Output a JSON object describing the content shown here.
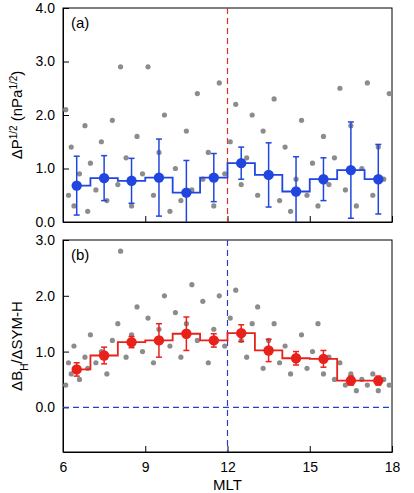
{
  "chart_data": [
    {
      "type": "scatter",
      "title": "(a)",
      "ylabel": [
        {
          "text": "ΔP"
        },
        {
          "text": "1/2",
          "sup": true
        },
        {
          "text": " (nPa"
        },
        {
          "text": "1/2",
          "sup": true
        },
        {
          "text": ")"
        }
      ],
      "xlim": [
        6,
        18
      ],
      "xticks": [
        6,
        9,
        12,
        15,
        18
      ],
      "ylim": [
        0,
        4
      ],
      "yticks": [
        {
          "value": 0,
          "label": "0.0"
        },
        {
          "value": 1,
          "label": "1.0"
        },
        {
          "value": 2,
          "label": "2.0"
        },
        {
          "value": 3,
          "label": "3.0"
        },
        {
          "value": 4,
          "label": "4.0"
        }
      ],
      "tick_labels": "y",
      "vline": 12,
      "vline_color": "#e0302a",
      "series": [
        {
          "type": "scatter",
          "color": "#8c8c8c",
          "marker": "circle",
          "x": [
            6.1,
            6.2,
            6.3,
            6.4,
            6.6,
            6.8,
            6.9,
            7.0,
            7.2,
            7.4,
            7.6,
            7.8,
            8.0,
            8.1,
            8.3,
            8.5,
            8.7,
            8.9,
            9.1,
            9.3,
            9.5,
            9.7,
            9.9,
            10.1,
            10.3,
            10.5,
            10.7,
            10.9,
            11.1,
            11.3,
            11.5,
            11.7,
            11.9,
            12.1,
            12.3,
            12.5,
            12.7,
            12.9,
            13.1,
            13.3,
            13.5,
            13.7,
            13.9,
            14.1,
            14.3,
            14.5,
            14.7,
            14.9,
            15.1,
            15.3,
            15.5,
            15.7,
            15.9,
            16.1,
            16.3,
            16.5,
            16.7,
            16.9,
            17.1,
            17.3,
            17.5,
            17.7,
            17.9
          ],
          "values": [
            2.1,
            0.5,
            1.4,
            0.3,
            0.9,
            1.8,
            0.2,
            1.1,
            0.6,
            1.5,
            0.4,
            1.9,
            0.7,
            2.9,
            1.2,
            0.3,
            1.6,
            0.9,
            2.9,
            0.5,
            1.3,
            2.0,
            0.2,
            1.0,
            0.4,
            1.7,
            0.6,
            2.4,
            0.8,
            1.3,
            0.3,
            2.6,
            0.9,
            1.5,
            2.2,
            0.7,
            1.2,
            2.0,
            0.5,
            1.7,
            0.9,
            2.3,
            0.4,
            1.4,
            0.2,
            0.8,
            1.9,
            0.5,
            1.1,
            0.3,
            1.6,
            0.7,
            1.2,
            2.5,
            0.6,
            1.8,
            0.3,
            1.0,
            2.6,
            0.5,
            1.4,
            0.8,
            2.4
          ]
        },
        {
          "type": "line",
          "line_style": "step",
          "marker": "circle",
          "color": "#2146e0",
          "x": [
            6.5,
            7.5,
            8.5,
            9.5,
            10.5,
            11.5,
            12.5,
            13.5,
            14.5,
            15.5,
            16.5,
            17.5
          ],
          "values": [
            0.68,
            0.82,
            0.77,
            0.83,
            0.55,
            0.83,
            1.1,
            0.88,
            0.57,
            0.8,
            0.97,
            0.8
          ],
          "errors": [
            0.55,
            0.42,
            0.42,
            0.72,
            0.6,
            0.45,
            0.3,
            0.6,
            0.65,
            0.4,
            0.9,
            0.65
          ]
        }
      ]
    },
    {
      "type": "scatter",
      "title": "(b)",
      "ylabel": [
        {
          "text": "ΔB"
        },
        {
          "text": "H",
          "sub": true
        },
        {
          "text": "/ΔSYM-H"
        }
      ],
      "xlabel": "MLT",
      "xlim": [
        6,
        18
      ],
      "xticks": [
        6,
        9,
        12,
        15,
        18
      ],
      "ylim": [
        -0.8,
        3
      ],
      "yticks": [
        {
          "value": 0,
          "label": "0.0"
        },
        {
          "value": 1,
          "label": "1.0"
        },
        {
          "value": 2,
          "label": "2.0"
        },
        {
          "value": 3,
          "label": "3.0"
        }
      ],
      "vline": 12,
      "vline_color": "#2a3fc8",
      "hline": 0,
      "hline_color": "#2a3fc8",
      "series": [
        {
          "type": "scatter",
          "color": "#8c8c8c",
          "marker": "circle",
          "x": [
            6.1,
            6.2,
            6.3,
            6.4,
            6.6,
            6.8,
            6.9,
            7.0,
            7.2,
            7.4,
            7.6,
            7.8,
            8.0,
            8.1,
            8.3,
            8.5,
            8.7,
            8.9,
            9.1,
            9.3,
            9.5,
            9.7,
            9.9,
            10.1,
            10.3,
            10.5,
            10.7,
            10.9,
            11.1,
            11.3,
            11.5,
            11.7,
            11.9,
            12.1,
            12.3,
            12.5,
            12.7,
            12.9,
            13.1,
            13.3,
            13.5,
            13.7,
            13.9,
            14.1,
            14.3,
            14.5,
            14.7,
            14.9,
            15.1,
            15.3,
            15.5,
            15.7,
            15.9,
            16.1,
            16.3,
            16.5,
            16.7,
            16.9,
            17.1,
            17.3,
            17.5,
            17.7,
            17.9
          ],
          "values": [
            0.4,
            0.8,
            0.6,
            1.1,
            0.5,
            0.9,
            0.7,
            1.3,
            0.8,
            1.0,
            0.6,
            1.2,
            1.5,
            2.8,
            0.9,
            1.3,
            1.8,
            1.0,
            1.6,
            0.8,
            1.4,
            2.0,
            1.1,
            1.7,
            0.9,
            1.5,
            2.2,
            1.2,
            1.9,
            0.8,
            1.4,
            2.0,
            1.1,
            1.6,
            2.1,
            1.2,
            0.9,
            1.5,
            1.8,
            0.7,
            1.2,
            1.5,
            0.8,
            1.1,
            0.6,
            0.9,
            1.3,
            0.7,
            1.0,
            1.5,
            0.6,
            0.9,
            0.5,
            0.8,
            0.4,
            0.6,
            0.3,
            0.5,
            0.4,
            0.6,
            0.3,
            0.5,
            0.4
          ]
        },
        {
          "type": "line",
          "line_style": "step",
          "marker": "circle",
          "color": "#e8211b",
          "x": [
            6.5,
            7.5,
            8.5,
            9.5,
            10.5,
            11.5,
            12.5,
            13.5,
            14.5,
            15.5,
            16.5,
            17.5
          ],
          "values": [
            0.68,
            0.93,
            1.17,
            1.2,
            1.32,
            1.2,
            1.33,
            1.02,
            0.88,
            0.87,
            0.48,
            0.48
          ],
          "errors": [
            0.12,
            0.15,
            0.1,
            0.3,
            0.3,
            0.12,
            0.15,
            0.2,
            0.12,
            0.15,
            0.08,
            0.08
          ]
        }
      ]
    }
  ]
}
